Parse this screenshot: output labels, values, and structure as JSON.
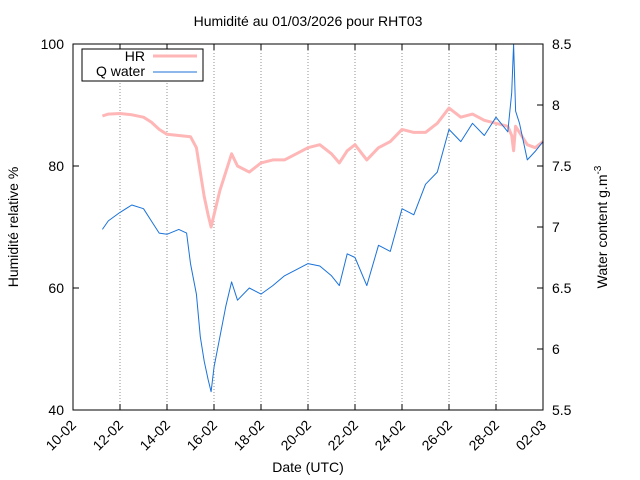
{
  "chart_data": {
    "type": "line",
    "title": "Humidité au 01/03/2026 pour RHT03",
    "xlabel": "Date (UTC)",
    "ylabel": "Humidité relative %",
    "y2label": "Water content g.m",
    "y2label_sup": "-3",
    "xlim": [
      "2026-02-10",
      "2026-03-02"
    ],
    "x_ticks": [
      "10-02",
      "12-02",
      "14-02",
      "16-02",
      "18-02",
      "20-02",
      "22-02",
      "24-02",
      "26-02",
      "28-02",
      "02-03"
    ],
    "ylim": [
      40,
      100
    ],
    "y_ticks": [
      40,
      60,
      80,
      100
    ],
    "y2lim": [
      5.5,
      8.5
    ],
    "y2_ticks": [
      "5.5",
      "6",
      "6.5",
      "7",
      "7.5",
      "8",
      "8.5"
    ],
    "grid": "vertical dotted at x ticks",
    "legend_position": "top-left",
    "series": [
      {
        "name": "HR",
        "axis": "left",
        "color": "#ffb6b6",
        "points": [
          [
            "2026-02-11T06:00",
            88.2
          ],
          [
            "2026-02-11T12:00",
            88.5
          ],
          [
            "2026-02-12T00:00",
            88.6
          ],
          [
            "2026-02-12T12:00",
            88.4
          ],
          [
            "2026-02-13T00:00",
            88.0
          ],
          [
            "2026-02-13T08:00",
            87.2
          ],
          [
            "2026-02-13T16:00",
            86.0
          ],
          [
            "2026-02-14T00:00",
            85.2
          ],
          [
            "2026-02-14T12:00",
            85.0
          ],
          [
            "2026-02-15T00:00",
            84.8
          ],
          [
            "2026-02-15T06:00",
            83.0
          ],
          [
            "2026-02-15T10:00",
            79.0
          ],
          [
            "2026-02-15T14:00",
            75.0
          ],
          [
            "2026-02-15T18:00",
            72.0
          ],
          [
            "2026-02-15T21:00",
            70.0
          ],
          [
            "2026-02-16T00:00",
            72.0
          ],
          [
            "2026-02-16T06:00",
            76.0
          ],
          [
            "2026-02-16T12:00",
            79.0
          ],
          [
            "2026-02-16T18:00",
            82.0
          ],
          [
            "2026-02-17T00:00",
            80.0
          ],
          [
            "2026-02-17T12:00",
            79.0
          ],
          [
            "2026-02-18T00:00",
            80.5
          ],
          [
            "2026-02-18T12:00",
            81.0
          ],
          [
            "2026-02-19T00:00",
            81.0
          ],
          [
            "2026-02-19T12:00",
            82.0
          ],
          [
            "2026-02-20T00:00",
            83.0
          ],
          [
            "2026-02-20T12:00",
            83.5
          ],
          [
            "2026-02-21T00:00",
            82.0
          ],
          [
            "2026-02-21T08:00",
            80.5
          ],
          [
            "2026-02-21T16:00",
            82.5
          ],
          [
            "2026-02-22T00:00",
            83.5
          ],
          [
            "2026-02-22T12:00",
            81.0
          ],
          [
            "2026-02-23T00:00",
            83.0
          ],
          [
            "2026-02-23T12:00",
            84.0
          ],
          [
            "2026-02-24T00:00",
            86.0
          ],
          [
            "2026-02-24T12:00",
            85.5
          ],
          [
            "2026-02-25T00:00",
            85.5
          ],
          [
            "2026-02-25T12:00",
            87.0
          ],
          [
            "2026-02-26T00:00",
            89.5
          ],
          [
            "2026-02-26T12:00",
            88.0
          ],
          [
            "2026-02-27T00:00",
            88.5
          ],
          [
            "2026-02-27T12:00",
            87.5
          ],
          [
            "2026-02-28T00:00",
            87.0
          ],
          [
            "2026-02-28T12:00",
            86.5
          ],
          [
            "2026-02-28T16:00",
            85.0
          ],
          [
            "2026-02-28T18:00",
            82.5
          ],
          [
            "2026-02-28T20:00",
            86.5
          ],
          [
            "2026-03-01T00:00",
            85.5
          ],
          [
            "2026-03-01T08:00",
            83.5
          ],
          [
            "2026-03-01T16:00",
            83.0
          ],
          [
            "2026-03-02T00:00",
            84.0
          ]
        ]
      },
      {
        "name": "Q water",
        "axis": "right",
        "color": "#1a72d9",
        "points": [
          [
            "2026-02-11T06:00",
            6.98
          ],
          [
            "2026-02-11T12:00",
            7.05
          ],
          [
            "2026-02-12T00:00",
            7.12
          ],
          [
            "2026-02-12T12:00",
            7.18
          ],
          [
            "2026-02-13T00:00",
            7.15
          ],
          [
            "2026-02-13T08:00",
            7.05
          ],
          [
            "2026-02-13T16:00",
            6.95
          ],
          [
            "2026-02-14T00:00",
            6.94
          ],
          [
            "2026-02-14T12:00",
            6.98
          ],
          [
            "2026-02-14T20:00",
            6.95
          ],
          [
            "2026-02-15T00:00",
            6.7
          ],
          [
            "2026-02-15T06:00",
            6.45
          ],
          [
            "2026-02-15T10:00",
            6.1
          ],
          [
            "2026-02-15T14:00",
            5.9
          ],
          [
            "2026-02-15T18:00",
            5.75
          ],
          [
            "2026-02-15T21:00",
            5.65
          ],
          [
            "2026-02-16T00:00",
            5.85
          ],
          [
            "2026-02-16T06:00",
            6.1
          ],
          [
            "2026-02-16T12:00",
            6.35
          ],
          [
            "2026-02-16T18:00",
            6.55
          ],
          [
            "2026-02-17T00:00",
            6.4
          ],
          [
            "2026-02-17T12:00",
            6.5
          ],
          [
            "2026-02-18T00:00",
            6.45
          ],
          [
            "2026-02-18T12:00",
            6.52
          ],
          [
            "2026-02-19T00:00",
            6.6
          ],
          [
            "2026-02-19T12:00",
            6.65
          ],
          [
            "2026-02-20T00:00",
            6.7
          ],
          [
            "2026-02-20T12:00",
            6.68
          ],
          [
            "2026-02-21T00:00",
            6.6
          ],
          [
            "2026-02-21T08:00",
            6.52
          ],
          [
            "2026-02-21T16:00",
            6.78
          ],
          [
            "2026-02-22T00:00",
            6.75
          ],
          [
            "2026-02-22T12:00",
            6.52
          ],
          [
            "2026-02-23T00:00",
            6.85
          ],
          [
            "2026-02-23T12:00",
            6.8
          ],
          [
            "2026-02-24T00:00",
            7.15
          ],
          [
            "2026-02-24T12:00",
            7.1
          ],
          [
            "2026-02-25T00:00",
            7.35
          ],
          [
            "2026-02-25T12:00",
            7.45
          ],
          [
            "2026-02-26T00:00",
            7.8
          ],
          [
            "2026-02-26T12:00",
            7.7
          ],
          [
            "2026-02-27T00:00",
            7.85
          ],
          [
            "2026-02-27T12:00",
            7.75
          ],
          [
            "2026-02-28T00:00",
            7.9
          ],
          [
            "2026-02-28T12:00",
            7.78
          ],
          [
            "2026-02-28T16:00",
            8.1
          ],
          [
            "2026-02-28T18:00",
            8.5
          ],
          [
            "2026-02-28T20:00",
            7.95
          ],
          [
            "2026-03-01T00:00",
            7.85
          ],
          [
            "2026-03-01T08:00",
            7.55
          ],
          [
            "2026-03-01T16:00",
            7.62
          ],
          [
            "2026-03-02T00:00",
            7.7
          ]
        ]
      }
    ]
  }
}
